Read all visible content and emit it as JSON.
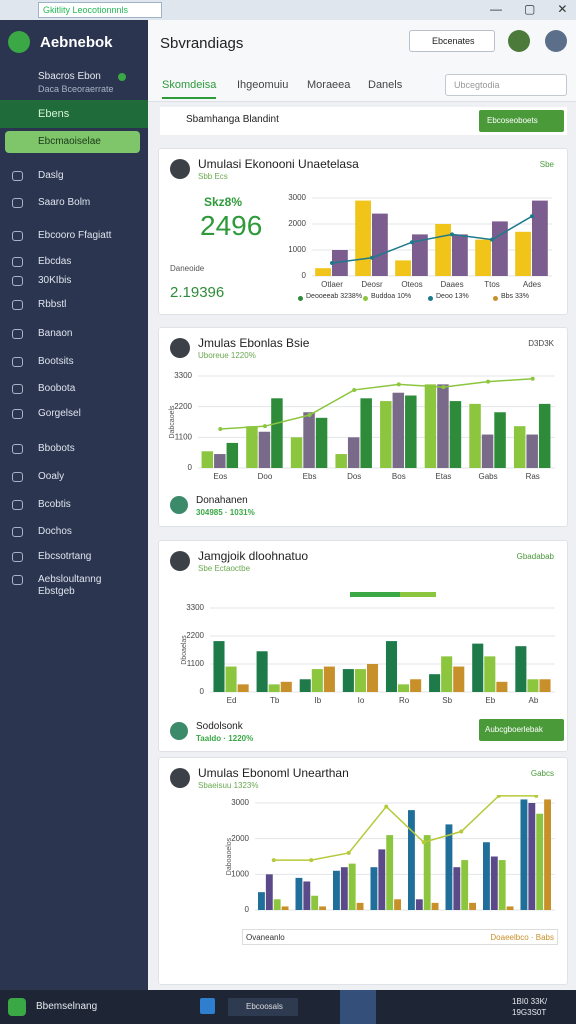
{
  "browser": {
    "tab": "Gkitlity Leocotionnnls"
  },
  "sidebar": {
    "brand": "Aebnebok",
    "user": "Sbacros Ebon",
    "user_sub": "Daca Bceoraerrate",
    "active": "Ebens",
    "button": "Ebcmaoiselae",
    "items": [
      "Daslg",
      "Saaro Bolm",
      "Ebcooro Ffagiatt",
      "Ebcdas",
      "30KIbis",
      "Rbbstl",
      "Banaon",
      "Bootsits",
      "Boobota",
      "Gorgelsel",
      "Bbobots",
      "Ooaly",
      "Bcobtis",
      "Dochos",
      "Ebcsotrtang",
      "Aebsloultanng",
      "Ebstgeb"
    ]
  },
  "header": {
    "title": "Sbvrandiags",
    "dropdown": "Ebcenates"
  },
  "tabs": [
    "Skomdeisa",
    "Ihgeomuiu",
    "Moraeea",
    "Danels"
  ],
  "search": "Ubcegtodia",
  "toolbar": {
    "label": "Sbamhanga Blandint",
    "button": "Ebcoseoboets"
  },
  "cards": [
    {
      "title": "Umulasi Ekonooni Unaetelasa",
      "subtitle": "Sbb Ecs",
      "badge": "Sbe",
      "stat_label": "Skz8%",
      "stat": "2496",
      "sub_label": "Daneoide",
      "sub_stat": "2.19396",
      "legend": [
        {
          "label": "Deooeeab 3238%",
          "color": "#2e8b3a"
        },
        {
          "label": "Buddoa 10%",
          "color": "#8cc63f"
        },
        {
          "label": "Deoo 13%",
          "color": "#1b7a8c"
        },
        {
          "label": "Bbs 33%",
          "color": "#c8902a"
        }
      ],
      "chart": {
        "type": "bar",
        "categories": [
          "Otlaer",
          "Deosr",
          "Oteos",
          "Daaes",
          "Ttos",
          "Ades"
        ],
        "ylim": [
          0,
          3000
        ],
        "yticks": [
          0,
          1000,
          2000,
          3000
        ],
        "series": [
          {
            "type": "bar",
            "color": "#f0c419",
            "values": [
              300,
              2900,
              600,
              2000,
              1400,
              1700
            ]
          },
          {
            "type": "bar",
            "color": "#7b5e8f",
            "values": [
              1000,
              2400,
              1600,
              1600,
              2100,
              2900
            ]
          },
          {
            "type": "line",
            "color": "#1b7a8c",
            "values": [
              500,
              700,
              1300,
              1600,
              1400,
              2300
            ]
          }
        ]
      }
    },
    {
      "title": "Jmulas Ebonlas Bsie",
      "subtitle": "Uboreue 1220%",
      "badge": "D3D3K",
      "footer_name": "Donahanen",
      "footer_sub": "304985 · 1031%",
      "chart": {
        "type": "bar",
        "y_label": "Dabcaoels",
        "categories": [
          "Eos",
          "Doo",
          "Ebs",
          "Dos",
          "Bos",
          "Etas",
          "Gabs",
          "Ras"
        ],
        "ylim": [
          0,
          3300
        ],
        "yticks": [
          0,
          1100,
          2200,
          3300
        ],
        "series": [
          {
            "type": "bar",
            "color": "#8cc63f",
            "values": [
              600,
              1500,
              1100,
              500,
              2400,
              3000,
              2300,
              1500
            ]
          },
          {
            "type": "bar",
            "color": "#7a6a8a",
            "values": [
              500,
              1300,
              2000,
              1100,
              2700,
              3000,
              1200,
              1200
            ]
          },
          {
            "type": "bar",
            "color": "#2e8b3a",
            "values": [
              900,
              2500,
              1800,
              2500,
              2600,
              2400,
              2000,
              2300
            ]
          },
          {
            "type": "line",
            "color": "#8cc63f",
            "values": [
              1400,
              1500,
              1900,
              2800,
              3000,
              2900,
              3100,
              3200
            ]
          }
        ]
      }
    },
    {
      "title": "Jamgjoik dloohnatuo",
      "subtitle": "Sbe Ectaoctbe",
      "badge": "Gbadabab",
      "footer_name": "Sodolsonk",
      "footer_sub": "Taaldo · 1220%",
      "button": "Aubcgboerlebak",
      "chart": {
        "type": "bar",
        "y_label": "Dboaelas",
        "categories": [
          "Ed",
          "Tb",
          "Ib",
          "Io",
          "Ro",
          "Sb",
          "Eb",
          "Ab"
        ],
        "ylim": [
          0,
          3300
        ],
        "yticks": [
          0,
          1100,
          2200,
          3300
        ],
        "series": [
          {
            "type": "bar",
            "color": "#1f7a4a",
            "values": [
              2000,
              1600,
              500,
              900,
              2000,
              700,
              1900,
              1800
            ]
          },
          {
            "type": "bar",
            "color": "#8cc63f",
            "values": [
              1000,
              300,
              900,
              900,
              300,
              1400,
              1400,
              500
            ]
          },
          {
            "type": "bar",
            "color": "#c8902a",
            "values": [
              300,
              400,
              1000,
              1100,
              500,
              1000,
              400,
              500
            ]
          }
        ]
      }
    },
    {
      "title": "Umulas Ebonoml Unearthan",
      "subtitle": "Sbaeisuu 1323%",
      "badge": "Gabcs",
      "legend_left": "Ovaneanlo",
      "legend_right": "Doaeelbco · Babs",
      "chart": {
        "type": "bar",
        "y_label": "Daboaoelos",
        "ylim": [
          0,
          3000
        ],
        "yticks": [
          0,
          1000,
          2000,
          3000
        ],
        "series": [
          {
            "type": "bar",
            "color": "#1f6f9a",
            "values": [
              500,
              900,
              1100,
              1200,
              2800,
              2400,
              1900,
              3100
            ]
          },
          {
            "type": "bar",
            "color": "#5b4a8a",
            "values": [
              1000,
              800,
              1200,
              1700,
              300,
              1200,
              1500,
              3000
            ]
          },
          {
            "type": "bar",
            "color": "#8cc63f",
            "values": [
              300,
              400,
              1300,
              2100,
              2100,
              1400,
              1400,
              2700
            ]
          },
          {
            "type": "bar",
            "color": "#c8902a",
            "values": [
              100,
              100,
              200,
              300,
              200,
              200,
              100,
              3100
            ]
          },
          {
            "type": "line",
            "color": "#b6c93a",
            "values": [
              1400,
              1400,
              1600,
              2900,
              1900,
              2200,
              3200,
              3200
            ]
          }
        ]
      }
    }
  ],
  "taskbar": {
    "start": "Bbemselnang",
    "app": "Ebcoosals",
    "clock": "1BI0 33K/ 19G3S0T"
  }
}
